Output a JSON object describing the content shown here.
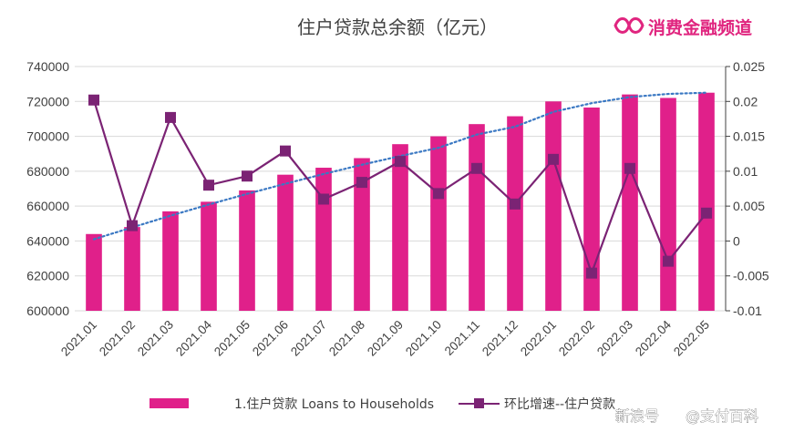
{
  "brand": {
    "name": "消费金融频道",
    "logo_icon": "infinity-ribbon-icon",
    "color": "#e0257f"
  },
  "watermark": {
    "left": "新浪号",
    "right": "@支付百科"
  },
  "chart_data": {
    "type": "bar",
    "title": "住户贷款总余额（亿元）",
    "categories": [
      "2021.01",
      "2021.02",
      "2021.03",
      "2021.04",
      "2021.05",
      "2021.06",
      "2021.07",
      "2021.08",
      "2021.09",
      "2021.10",
      "2021.11",
      "2021.12",
      "2022.01",
      "2022.02",
      "2022.03",
      "2022.04",
      "2022.05"
    ],
    "y_left": {
      "min": 600000,
      "max": 740000,
      "step": 20000,
      "ticks": [
        "600000",
        "620000",
        "640000",
        "660000",
        "680000",
        "700000",
        "720000",
        "740000"
      ]
    },
    "y_right": {
      "min": -0.01,
      "max": 0.025,
      "step": 0.005,
      "ticks": [
        "-0.01",
        "-0.005",
        "0",
        "0.005",
        "0.01",
        "0.015",
        "0.02",
        "0.025"
      ]
    },
    "grid": true,
    "legend_position": "bottom",
    "series": [
      {
        "name": "1.住户贷款 Loans to Households",
        "type": "bar",
        "axis": "left",
        "color": "#e0208a",
        "values": [
          644000,
          648000,
          657000,
          662500,
          669000,
          678000,
          682000,
          687500,
          695500,
          700000,
          707000,
          711500,
          720000,
          716500,
          724000,
          722000,
          725000
        ]
      },
      {
        "name": "环比增速--住户贷款",
        "type": "line",
        "axis": "right",
        "color": "#7b2374",
        "marker": "square",
        "values": [
          0.0202,
          0.0022,
          0.0177,
          0.008,
          0.0093,
          0.0129,
          0.006,
          0.0084,
          0.0114,
          0.0068,
          0.0104,
          0.0053,
          0.0117,
          -0.0046,
          0.0104,
          -0.0029,
          0.004
        ]
      },
      {
        "type": "trendline",
        "axis": "left",
        "style": "dotted",
        "color": "#3a78c3",
        "values": [
          641000,
          647800,
          654500,
          660900,
          667000,
          672800,
          678400,
          683700,
          688700,
          693400,
          701000,
          705500,
          714000,
          719000,
          722500,
          724300,
          725000
        ]
      }
    ]
  }
}
